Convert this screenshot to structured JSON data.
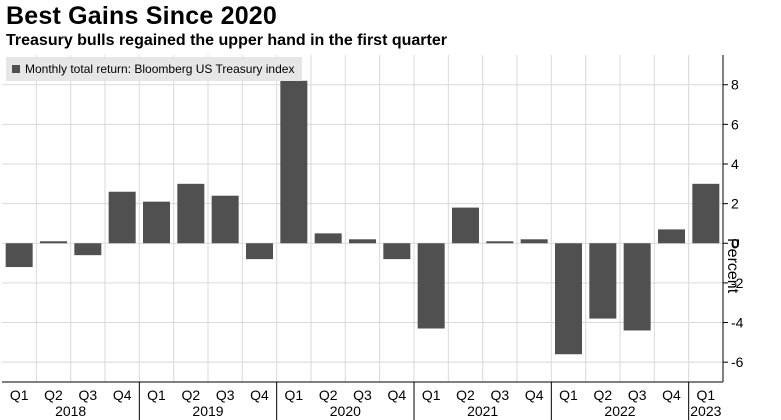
{
  "title": "Best Gains Since 2020",
  "subtitle": "Treasury bulls regained the upper hand in the first quarter",
  "colors": {
    "bar": "#505050",
    "grid": "#d9d9d9",
    "legend_bg": "#e6e6e6"
  },
  "chart_data": {
    "type": "bar",
    "title": "Best Gains Since 2020",
    "subtitle": "Treasury bulls regained the upper hand in the first quarter",
    "legend": [
      "Monthly total return: Bloomberg US Treasury index"
    ],
    "legend_position": "top-left",
    "xlabel": "",
    "ylabel": "Percent",
    "ylim": [
      -7,
      9.5
    ],
    "yticks": [
      -6,
      -4,
      -2,
      0,
      2,
      4,
      6,
      8
    ],
    "ytick_labels": [
      "-6",
      "-4",
      "-2",
      "0",
      "2",
      "4",
      "6",
      "8"
    ],
    "grid": true,
    "categories": [
      "Q1",
      "Q2",
      "Q3",
      "Q4",
      "Q1",
      "Q2",
      "Q3",
      "Q4",
      "Q1",
      "Q2",
      "Q3",
      "Q4",
      "Q1",
      "Q2",
      "Q3",
      "Q4",
      "Q1",
      "Q2",
      "Q3",
      "Q4",
      "Q1"
    ],
    "year_labels": [
      {
        "label": "2018",
        "start": 0,
        "end": 3
      },
      {
        "label": "2019",
        "start": 4,
        "end": 7
      },
      {
        "label": "2020",
        "start": 8,
        "end": 11
      },
      {
        "label": "2021",
        "start": 12,
        "end": 15
      },
      {
        "label": "2022",
        "start": 16,
        "end": 19
      },
      {
        "label": "2023",
        "start": 20,
        "end": 20
      }
    ],
    "series": [
      {
        "name": "Monthly total return: Bloomberg US Treasury index",
        "values": [
          -1.2,
          0.1,
          -0.6,
          2.6,
          2.1,
          3.0,
          2.4,
          -0.8,
          8.2,
          0.5,
          0.2,
          -0.8,
          -4.3,
          1.8,
          0.1,
          0.2,
          -5.6,
          -3.8,
          -4.4,
          0.7,
          3.0
        ]
      }
    ]
  }
}
